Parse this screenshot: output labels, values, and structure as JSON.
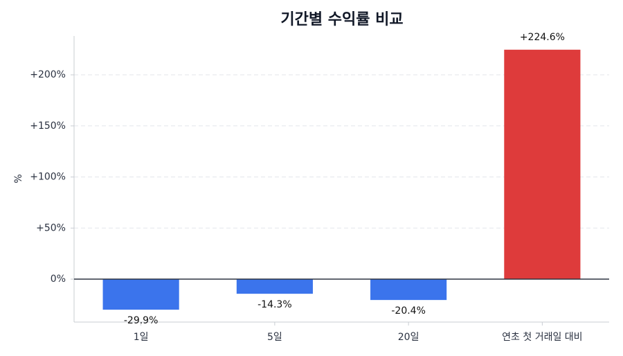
{
  "chart_data": {
    "type": "bar",
    "title": "기간별 수익률 비교",
    "y_label": "%",
    "categories": [
      "1일",
      "5일",
      "20일",
      "연초 첫 거래일 대비"
    ],
    "values": [
      -29.9,
      -14.3,
      -20.4,
      224.6
    ],
    "value_labels": [
      "-29.9%",
      "-14.3%",
      "-20.4%",
      "+224.6%"
    ],
    "colors": [
      "#3b74ec",
      "#3b74ec",
      "#3b74ec",
      "#de3b3b"
    ],
    "ylim": [
      -42,
      238
    ],
    "yticks": [
      {
        "value": 0,
        "label": "0%"
      },
      {
        "value": 50,
        "label": "+50%"
      },
      {
        "value": 100,
        "label": "+100%"
      },
      {
        "value": 150,
        "label": "+150%"
      },
      {
        "value": 200,
        "label": "+200%"
      }
    ],
    "grid": true
  }
}
